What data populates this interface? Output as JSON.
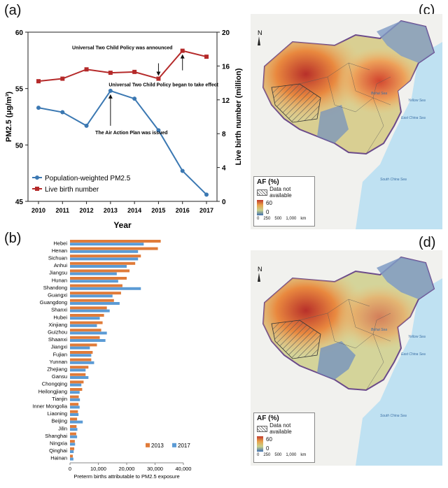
{
  "panels": {
    "a": "(a)",
    "b": "(b)",
    "c": "(c)",
    "d": "(d)"
  },
  "chart_data": [
    {
      "type": "line",
      "id": "a",
      "xlabel": "Year",
      "ylabel_left": "PM2.5 (μg/m³)",
      "ylabel_right": "Live birth number (million)",
      "x": [
        2010,
        2011,
        2012,
        2013,
        2014,
        2015,
        2016,
        2017
      ],
      "ylim_left": [
        45,
        60
      ],
      "ylim_right": [
        0,
        20
      ],
      "yticks_left": [
        45,
        50,
        55,
        60
      ],
      "yticks_right": [
        0,
        4,
        8,
        12,
        16,
        20
      ],
      "series": [
        {
          "name": "Population-weighted PM2.5",
          "axis": "left",
          "color": "#3b78b2",
          "values": [
            53.3,
            52.9,
            51.7,
            54.8,
            54.1,
            51.3,
            47.7,
            45.6
          ]
        },
        {
          "name": "Live birth number",
          "axis": "right",
          "color": "#b52a2a",
          "values": [
            14.2,
            14.5,
            15.6,
            15.2,
            15.3,
            14.5,
            17.8,
            17.1
          ]
        }
      ],
      "annotations": {
        "announced": "Universal Two Child Policy was announced",
        "effect": "Universal Two Child Policy began to take effect",
        "air": "The Air Action Plan was issued"
      }
    },
    {
      "type": "bar",
      "id": "b",
      "orientation": "horizontal",
      "xlabel": "Preterm births attributable to PM2.5 exposure",
      "xlim": [
        0,
        40000
      ],
      "xticks": [
        0,
        10000,
        20000,
        30000,
        40000
      ],
      "xtick_labels": [
        "0",
        "10,000",
        "20,000",
        "30,000",
        "40,000"
      ],
      "categories": [
        "Hebei",
        "Henan",
        "Sichuan",
        "Anhui",
        "Jiangsu",
        "Hunan",
        "Shandong",
        "Guangxi",
        "Guangdong",
        "Shanxi",
        "Hubei",
        "Xinjiang",
        "Guizhou",
        "Shaanxi",
        "Jiangxi",
        "Fujian",
        "Yunnan",
        "Zhejiang",
        "Gansu",
        "Chongqing",
        "Heilongjiang",
        "Tianjin",
        "Inner Mongolia",
        "Liaoning",
        "Beijing",
        "Jilin",
        "Shanghai",
        "Ningxia",
        "Qinghai",
        "Hainan"
      ],
      "series": [
        {
          "name": "2013",
          "color": "#e07b39",
          "values": [
            32000,
            31000,
            25000,
            23000,
            21000,
            20000,
            18500,
            18000,
            15500,
            13000,
            12000,
            11500,
            11000,
            10500,
            9500,
            8000,
            7500,
            6500,
            5500,
            4800,
            4300,
            3100,
            3000,
            2800,
            2500,
            2300,
            2200,
            1700,
            1500,
            1000
          ]
        },
        {
          "name": "2017",
          "color": "#5b9bd5",
          "values": [
            26000,
            24000,
            24000,
            20000,
            16500,
            17000,
            25000,
            15000,
            17500,
            14000,
            10500,
            9500,
            13000,
            12500,
            7000,
            7500,
            8500,
            5500,
            6500,
            4000,
            3400,
            3500,
            3400,
            3000,
            4500,
            2600,
            2500,
            1800,
            1300,
            1200
          ]
        }
      ]
    }
  ],
  "maps": [
    {
      "id": "c",
      "legend_title": "AF (%)",
      "na_label": "Data not available",
      "scale_max": "60",
      "scale_min": "0",
      "scale_labels": [
        "0",
        "250",
        "500",
        "1,000"
      ],
      "scale_unit": "km",
      "north": "N",
      "places": [
        "Bohai Sea",
        "East China Sea",
        "South China Sea",
        "Yellow Sea"
      ]
    },
    {
      "id": "d",
      "legend_title": "AF (%)",
      "na_label": "Data not available",
      "scale_max": "60",
      "scale_min": "0",
      "scale_labels": [
        "0",
        "250",
        "500",
        "1,000"
      ],
      "scale_unit": "km",
      "north": "N",
      "places": [
        "Bohai Sea",
        "East China Sea",
        "South China Sea",
        "Yellow Sea"
      ]
    }
  ]
}
